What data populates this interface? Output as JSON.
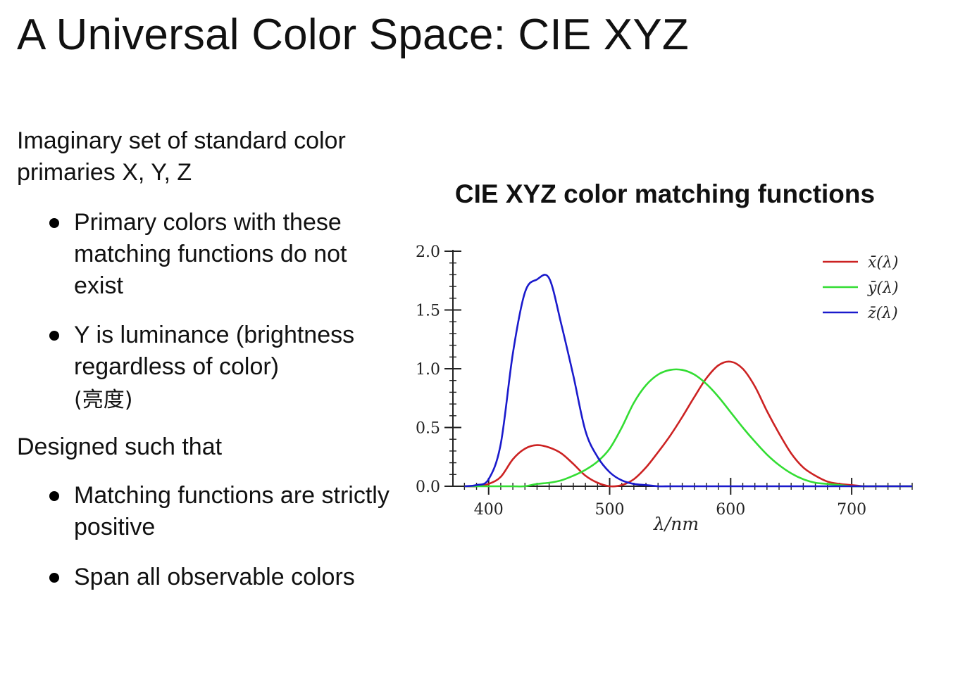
{
  "slide": {
    "title": "A Universal Color Space: CIE XYZ",
    "intro": "Imaginary set of standard color primaries X, Y, Z",
    "bullets_primary": [
      "Primary colors with these matching functions do not exist",
      "Y is luminance (brightness regardless of color)"
    ],
    "luminance_note": "(亮度)",
    "designed_heading": "Designed such that",
    "bullets_designed": [
      "Matching functions are strictly positive",
      "Span all observable colors"
    ]
  },
  "chart_data": {
    "type": "line",
    "title": "CIE XYZ color matching functions",
    "xlabel": "λ/nm",
    "ylabel": "",
    "xlim": [
      360,
      750
    ],
    "ylim": [
      0,
      2.0
    ],
    "xticks": [
      "400",
      "500",
      "600",
      "700"
    ],
    "yticks": [
      "0.0",
      "0.5",
      "1.0",
      "1.5",
      "2.0"
    ],
    "grid": false,
    "legend_position": "top-right",
    "x": [
      380,
      390,
      400,
      410,
      420,
      430,
      440,
      450,
      460,
      470,
      480,
      490,
      500,
      510,
      520,
      530,
      540,
      550,
      560,
      570,
      580,
      590,
      600,
      610,
      620,
      630,
      640,
      650,
      660,
      670,
      680,
      690,
      700,
      710,
      720,
      730,
      740,
      750
    ],
    "series": [
      {
        "name": "x̄(λ)",
        "color": "#cc2222",
        "values": [
          0.0,
          0.0,
          0.02,
          0.08,
          0.23,
          0.32,
          0.35,
          0.33,
          0.28,
          0.19,
          0.09,
          0.03,
          0.0,
          0.01,
          0.06,
          0.16,
          0.29,
          0.43,
          0.59,
          0.76,
          0.92,
          1.03,
          1.06,
          1.0,
          0.85,
          0.64,
          0.45,
          0.28,
          0.16,
          0.09,
          0.04,
          0.02,
          0.01,
          0.0,
          0.0,
          0.0,
          0.0,
          0.0
        ]
      },
      {
        "name": "ȳ(λ)",
        "color": "#33dd33",
        "values": [
          0.0,
          0.0,
          0.0,
          0.0,
          0.0,
          0.0,
          0.02,
          0.03,
          0.05,
          0.09,
          0.14,
          0.21,
          0.32,
          0.5,
          0.71,
          0.86,
          0.95,
          0.99,
          0.99,
          0.95,
          0.87,
          0.76,
          0.63,
          0.5,
          0.38,
          0.27,
          0.18,
          0.11,
          0.06,
          0.03,
          0.02,
          0.01,
          0.0,
          0.0,
          0.0,
          0.0,
          0.0,
          0.0
        ]
      },
      {
        "name": "z̄(λ)",
        "color": "#1a1acc",
        "values": [
          0.0,
          0.01,
          0.06,
          0.36,
          1.13,
          1.65,
          1.76,
          1.77,
          1.38,
          0.94,
          0.47,
          0.25,
          0.12,
          0.05,
          0.02,
          0.01,
          0.0,
          0.0,
          0.0,
          0.0,
          0.0,
          0.0,
          0.0,
          0.0,
          0.0,
          0.0,
          0.0,
          0.0,
          0.0,
          0.0,
          0.0,
          0.0,
          0.0,
          0.0,
          0.0,
          0.0,
          0.0,
          0.0
        ]
      }
    ]
  }
}
